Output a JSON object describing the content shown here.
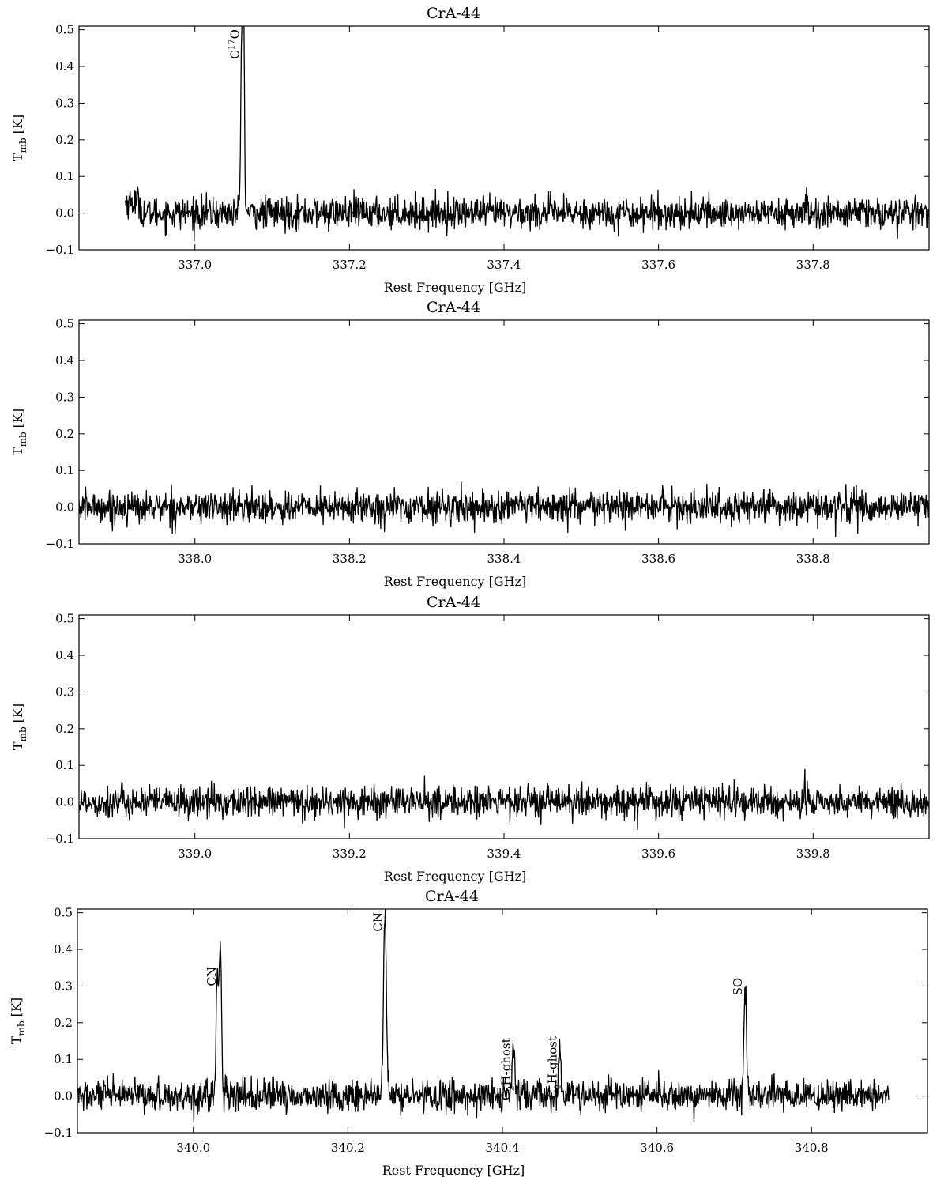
{
  "chart_data": [
    {
      "type": "line",
      "title": "CrA-44",
      "xlabel": "Rest Frequency [GHz]",
      "ylabel": "Tmb [K]",
      "ylabel_main": "T",
      "ylabel_sub": "mb",
      "ylabel_unit": "[K]",
      "xlim": [
        336.85,
        337.95
      ],
      "ylim": [
        -0.1,
        0.51
      ],
      "xticks": [
        "337.0",
        "337.2",
        "337.4",
        "337.6",
        "337.8"
      ],
      "yticks": [
        "−0.1",
        "0.0",
        "0.1",
        "0.2",
        "0.3",
        "0.4",
        "0.5"
      ],
      "grid": false,
      "series": [
        {
          "x_range": [
            336.91,
            337.95
          ],
          "noise_rms": 0.022,
          "peaks": [
            {
              "x": 337.061,
              "y": 0.51,
              "width": 0.0015
            },
            {
              "x": 337.063,
              "y": 0.43,
              "width": 0.0012
            }
          ]
        }
      ],
      "annotations": [
        {
          "x": 337.061,
          "label": "C",
          "sup": "17",
          "tail": "O"
        }
      ]
    },
    {
      "type": "line",
      "title": "CrA-44",
      "xlabel": "Rest Frequency [GHz]",
      "ylabel": "Tmb [K]",
      "ylabel_main": "T",
      "ylabel_sub": "mb",
      "ylabel_unit": "[K]",
      "xlim": [
        337.85,
        338.95
      ],
      "ylim": [
        -0.1,
        0.51
      ],
      "xticks": [
        "338.0",
        "338.2",
        "338.4",
        "338.6",
        "338.8"
      ],
      "yticks": [
        "−0.1",
        "0.0",
        "0.1",
        "0.2",
        "0.3",
        "0.4",
        "0.5"
      ],
      "grid": false,
      "series": [
        {
          "x_range": [
            337.85,
            338.95
          ],
          "noise_rms": 0.022,
          "peaks": []
        }
      ],
      "annotations": []
    },
    {
      "type": "line",
      "title": "CrA-44",
      "xlabel": "Rest Frequency [GHz]",
      "ylabel": "Tmb [K]",
      "ylabel_main": "T",
      "ylabel_sub": "mb",
      "ylabel_unit": "[K]",
      "xlim": [
        338.85,
        339.95
      ],
      "ylim": [
        -0.1,
        0.51
      ],
      "xticks": [
        "339.0",
        "339.2",
        "339.4",
        "339.6",
        "339.8"
      ],
      "yticks": [
        "−0.1",
        "0.0",
        "0.1",
        "0.2",
        "0.3",
        "0.4",
        "0.5"
      ],
      "grid": false,
      "series": [
        {
          "x_range": [
            338.85,
            339.95
          ],
          "noise_rms": 0.022,
          "peaks": []
        }
      ],
      "annotations": []
    },
    {
      "type": "line",
      "title": "CrA-44",
      "xlabel": "Rest Frequency [GHz]",
      "ylabel": "Tmb [K]",
      "ylabel_main": "T",
      "ylabel_sub": "mb",
      "ylabel_unit": "[K]",
      "xlim": [
        339.85,
        340.95
      ],
      "ylim": [
        -0.1,
        0.51
      ],
      "xticks": [
        "340.0",
        "340.2",
        "340.4",
        "340.6",
        "340.8"
      ],
      "yticks": [
        "−0.1",
        "0.0",
        "0.1",
        "0.2",
        "0.3",
        "0.4",
        "0.5"
      ],
      "grid": false,
      "series": [
        {
          "x_range": [
            339.85,
            340.9
          ],
          "noise_rms": 0.022,
          "peaks": [
            {
              "x": 340.031,
              "y": 0.34,
              "width": 0.0015
            },
            {
              "x": 340.035,
              "y": 0.4,
              "width": 0.0015
            },
            {
              "x": 340.248,
              "y": 0.51,
              "width": 0.0018
            },
            {
              "x": 340.414,
              "y": 0.145,
              "width": 0.0015
            },
            {
              "x": 340.474,
              "y": 0.15,
              "width": 0.0015
            },
            {
              "x": 340.714,
              "y": 0.31,
              "width": 0.0016
            }
          ]
        }
      ],
      "annotations": [
        {
          "x": 340.033,
          "label": "CN",
          "sub": "",
          "tail": ""
        },
        {
          "x": 340.248,
          "label": "CN",
          "sub": "",
          "tail": ""
        },
        {
          "x": 340.414,
          "label": "C",
          "sub": "2",
          "tail": "H-ghost"
        },
        {
          "x": 340.474,
          "label": "C",
          "sub": "2",
          "tail": "H-ghost"
        },
        {
          "x": 340.714,
          "label": "SO",
          "sub": "",
          "tail": ""
        }
      ]
    }
  ]
}
